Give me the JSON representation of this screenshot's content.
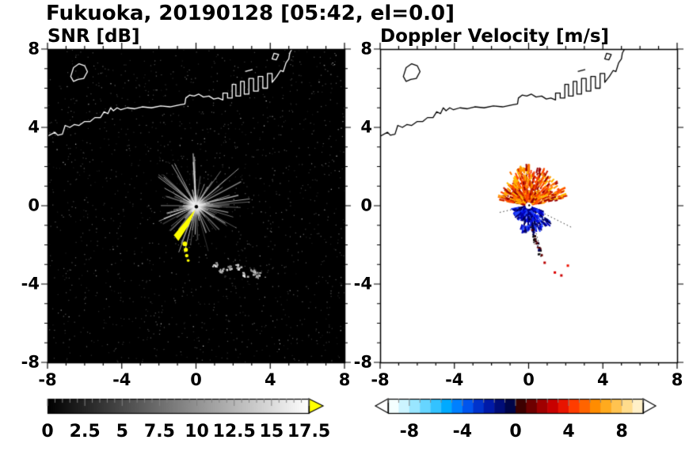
{
  "header": {
    "title": "Fukuoka, 20190128 [05:42, el=0.0]"
  },
  "panels": {
    "snr": {
      "title": "SNR [dB]"
    },
    "velocity": {
      "title": "Doppler Velocity [m/s]"
    }
  },
  "chart_data": [
    {
      "type": "heatmap",
      "title": "SNR [dB]",
      "xlabel": "",
      "ylabel": "",
      "xlim": [
        -8,
        8
      ],
      "ylim": [
        -8,
        8
      ],
      "xticks": [
        -8,
        -4,
        0,
        4,
        8
      ],
      "yticks": [
        -8,
        -4,
        0,
        4,
        8
      ],
      "minor_tick_step": 1,
      "background": "#000000",
      "coast_color": "#ffffff",
      "colorbar": {
        "range": [
          0,
          17.5
        ],
        "tick_step": 0.5,
        "labels": [
          "0",
          "2.5",
          "5",
          "7.5",
          "10",
          "12.5",
          "15",
          "17.5"
        ],
        "label_values": [
          0,
          2.5,
          5,
          7.5,
          10,
          12.5,
          15,
          17.5
        ],
        "gradient": [
          "#000000",
          "#ffffff"
        ],
        "over_arrow_color": "#ffff00"
      },
      "features": {
        "radar_center": [
          0,
          0
        ],
        "noise_speckle_count": 1500,
        "clutter_rays": {
          "count": 130,
          "min_length_km": 0.3,
          "max_length_km": 2.6,
          "gray_range": [
            140,
            255
          ]
        },
        "long_rays": [
          [
            2.9,
            0.35
          ],
          [
            2.3,
            1.9
          ],
          [
            -1.7,
            0.9
          ]
        ],
        "strong_echo_color": "#ffff00",
        "strong_echo_polygon": [
          [
            -0.05,
            -0.2
          ],
          [
            -1.2,
            -1.5
          ],
          [
            -0.95,
            -1.8
          ],
          [
            -0.4,
            -1.0
          ],
          [
            -0.15,
            -0.45
          ]
        ],
        "echo_spots_yellow": [
          [
            -0.6,
            -1.95
          ],
          [
            -0.55,
            -2.25
          ],
          [
            -0.5,
            -2.55
          ],
          [
            -0.42,
            -2.8
          ]
        ],
        "echo_spots_gray": [
          [
            0.95,
            -2.95
          ],
          [
            1.35,
            -3.3
          ],
          [
            1.75,
            -3.15
          ],
          [
            2.25,
            -3.1
          ],
          [
            2.6,
            -3.45
          ],
          [
            3.05,
            -3.35
          ],
          [
            3.3,
            -3.5
          ]
        ]
      }
    },
    {
      "type": "heatmap",
      "title": "Doppler Velocity [m/s]",
      "xlabel": "",
      "ylabel": "",
      "xlim": [
        -8,
        8
      ],
      "ylim": [
        -8,
        8
      ],
      "xticks": [
        -8,
        -4,
        0,
        4,
        8
      ],
      "yticks": [
        -8,
        -4,
        0,
        4,
        8
      ],
      "minor_tick_step": 1,
      "background": "#ffffff",
      "coast_color": "#000000",
      "colorbar": {
        "range": [
          -9.6,
          9.6
        ],
        "tick_step": 0.8,
        "labels": [
          "-8",
          "-4",
          "0",
          "4",
          "8"
        ],
        "label_values": [
          -8,
          -4,
          0,
          4,
          8
        ],
        "cells": [
          "#f4ffff",
          "#ccf4ff",
          "#99e6ff",
          "#66d5ff",
          "#33c2ff",
          "#00aaff",
          "#0080ff",
          "#0055ee",
          "#0033cc",
          "#001aa8",
          "#000d78",
          "#000548",
          "#3c0000",
          "#6e0000",
          "#a00000",
          "#c80000",
          "#e81400",
          "#ff3c00",
          "#ff6400",
          "#ff8c00",
          "#ffaa1e",
          "#ffc350",
          "#ffdc8c",
          "#fff0c8"
        ],
        "under_arrow_color": "#ffffff",
        "over_arrow_color": "#ffffff"
      },
      "features": {
        "radar_center": [
          0,
          0
        ],
        "away_fan": {
          "angle_deg": [
            10,
            170
          ],
          "max_radius_km": 1.7,
          "colors": [
            "#990000",
            "#cc2200",
            "#ff4400",
            "#ff7700",
            "#ff9900",
            "#ffbb00"
          ]
        },
        "toward_blob": {
          "angle_deg": [
            190,
            340
          ],
          "max_radius_km": 1.2,
          "colors": [
            "#000055",
            "#000088",
            "#0000bb",
            "#0011ee",
            "#2244ff"
          ]
        },
        "dotted_rays": [
          [
            2.3,
            -1.1
          ],
          [
            -1.6,
            -0.35
          ],
          [
            0.75,
            -2.6
          ]
        ],
        "trail": {
          "from": [
            0.15,
            -1.15
          ],
          "to": [
            0.6,
            -2.55
          ],
          "colors": [
            "#220000",
            "#440000",
            "#000033",
            "#111111",
            "#660000"
          ]
        },
        "isolated_dots": [
          {
            "xy": [
              1.35,
              -3.35
            ],
            "color": "#dd0000"
          },
          {
            "xy": [
              2.05,
              -3.0
            ],
            "color": "#ee1100"
          },
          {
            "xy": [
              1.7,
              -3.5
            ],
            "color": "#cc0000"
          },
          {
            "xy": [
              0.8,
              -2.85
            ],
            "color": "#bb0000"
          },
          {
            "xy": [
              0.5,
              -2.2
            ],
            "color": "#000066"
          }
        ]
      }
    }
  ],
  "coastline": {
    "main": [
      [
        -8.0,
        3.55
      ],
      [
        -7.6,
        3.75
      ],
      [
        -7.45,
        3.6
      ],
      [
        -7.2,
        3.65
      ],
      [
        -7.05,
        4.1
      ],
      [
        -6.8,
        4.0
      ],
      [
        -6.55,
        4.15
      ],
      [
        -6.3,
        4.1
      ],
      [
        -6.0,
        4.3
      ],
      [
        -5.7,
        4.3
      ],
      [
        -5.45,
        4.5
      ],
      [
        -5.15,
        4.5
      ],
      [
        -4.95,
        4.8
      ],
      [
        -4.75,
        4.7
      ],
      [
        -4.6,
        5.0
      ],
      [
        -4.45,
        4.85
      ],
      [
        -4.25,
        5.0
      ],
      [
        -4.05,
        4.9
      ],
      [
        -3.7,
        5.0
      ],
      [
        -3.3,
        4.95
      ],
      [
        -2.9,
        5.05
      ],
      [
        -2.4,
        5.0
      ],
      [
        -1.9,
        5.1
      ],
      [
        -1.4,
        5.05
      ],
      [
        -0.9,
        5.15
      ],
      [
        -0.6,
        5.2
      ],
      [
        -0.55,
        5.5
      ],
      [
        -0.35,
        5.65
      ],
      [
        -0.1,
        5.6
      ],
      [
        0.15,
        5.7
      ],
      [
        0.4,
        5.55
      ],
      [
        0.7,
        5.6
      ],
      [
        0.95,
        5.45
      ],
      [
        1.2,
        5.5
      ],
      [
        1.45,
        5.4
      ],
      [
        1.45,
        5.75
      ],
      [
        1.7,
        5.75
      ],
      [
        1.7,
        5.5
      ],
      [
        1.95,
        5.5
      ],
      [
        1.95,
        6.2
      ],
      [
        2.15,
        6.2
      ],
      [
        2.15,
        5.6
      ],
      [
        2.4,
        5.6
      ],
      [
        2.4,
        6.35
      ],
      [
        2.6,
        6.35
      ],
      [
        2.6,
        5.7
      ],
      [
        2.85,
        5.7
      ],
      [
        2.85,
        6.5
      ],
      [
        3.1,
        6.5
      ],
      [
        3.1,
        5.85
      ],
      [
        3.35,
        5.85
      ],
      [
        3.35,
        6.6
      ],
      [
        3.6,
        6.6
      ],
      [
        3.6,
        6.0
      ],
      [
        3.85,
        6.0
      ],
      [
        3.85,
        6.75
      ],
      [
        4.1,
        6.75
      ],
      [
        4.1,
        6.3
      ],
      [
        4.35,
        6.6
      ],
      [
        4.55,
        6.9
      ],
      [
        4.7,
        6.85
      ],
      [
        4.85,
        7.3
      ],
      [
        5.0,
        7.5
      ],
      [
        5.05,
        7.8
      ],
      [
        5.2,
        8.05
      ]
    ],
    "island": [
      [
        -6.75,
        6.6
      ],
      [
        -6.6,
        7.05
      ],
      [
        -6.3,
        7.25
      ],
      [
        -6.0,
        7.15
      ],
      [
        -5.85,
        6.85
      ],
      [
        -6.05,
        6.5
      ],
      [
        -6.35,
        6.45
      ],
      [
        -6.6,
        6.35
      ],
      [
        -6.75,
        6.6
      ]
    ],
    "islet": [
      [
        4.1,
        7.5
      ],
      [
        4.2,
        7.78
      ],
      [
        4.45,
        7.72
      ],
      [
        4.32,
        7.45
      ],
      [
        4.1,
        7.5
      ]
    ],
    "breakwaters": [
      [
        [
          2.65,
          6.85
        ],
        [
          3.05,
          6.95
        ]
      ]
    ]
  }
}
